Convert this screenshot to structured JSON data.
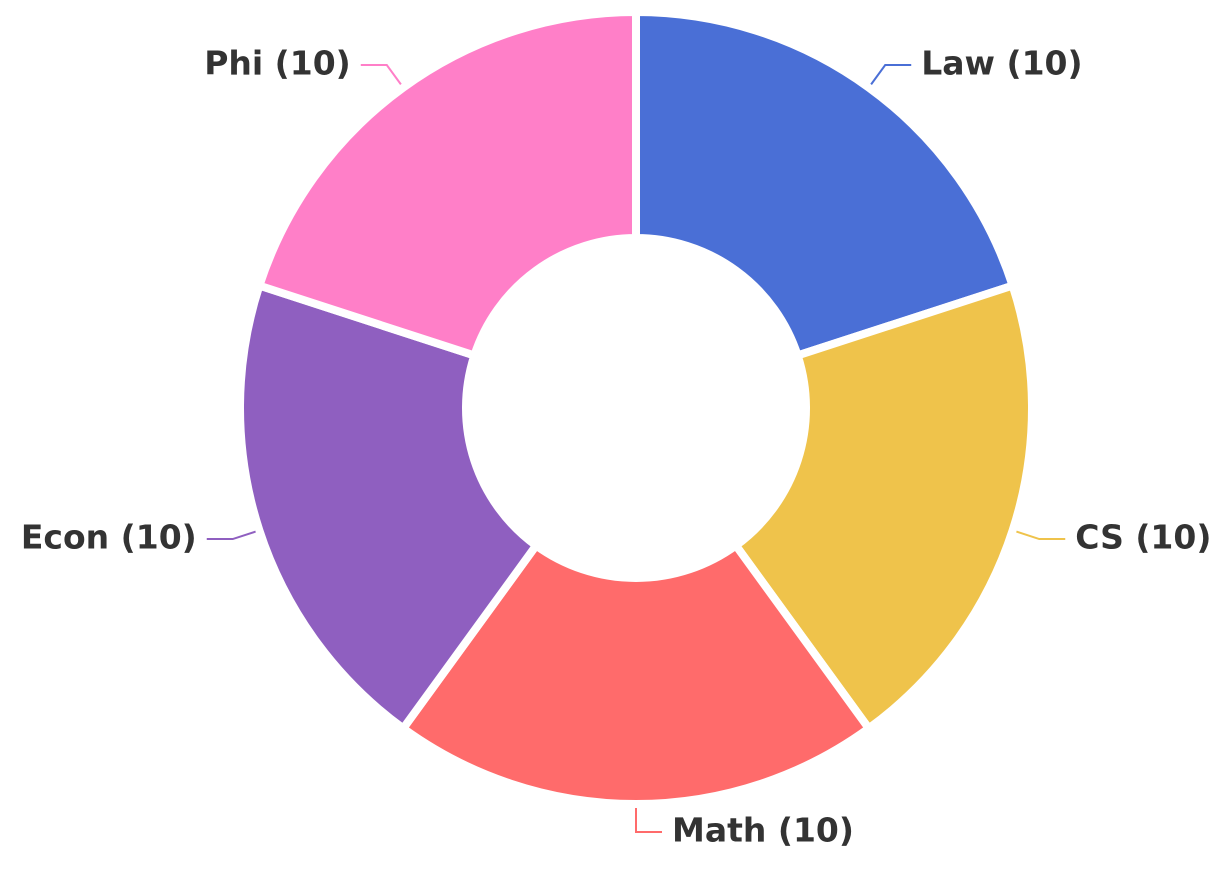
{
  "chart_data": {
    "type": "donut",
    "values": [
      10,
      10,
      10,
      10,
      10
    ],
    "value_labels": [
      "Law (10)",
      "CS (10)",
      "Math (10)",
      "Econ (10)",
      "Phi (10)"
    ],
    "colors": [
      "#4a6fd6",
      "#efc34b",
      "#ff6b6b",
      "#8f5fc0",
      "#ff7fc8"
    ]
  }
}
